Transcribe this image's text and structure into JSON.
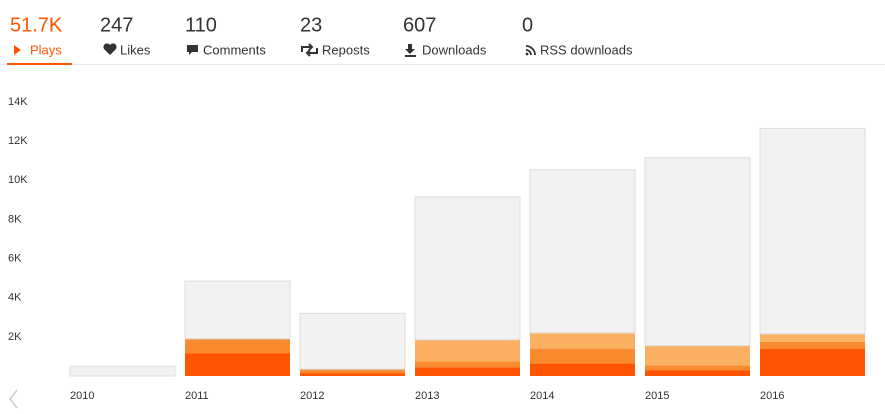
{
  "tabs": [
    {
      "value": "51.7K",
      "label": "Plays"
    },
    {
      "value": "247",
      "label": "Likes"
    },
    {
      "value": "110",
      "label": "Comments"
    },
    {
      "value": "23",
      "label": "Reposts"
    },
    {
      "value": "607",
      "label": "Downloads"
    },
    {
      "value": "0",
      "label": "RSS downloads"
    }
  ],
  "chart_data": {
    "type": "stacked-bar",
    "categories": [
      "2010",
      "2011",
      "2012",
      "2013",
      "2014",
      "2015",
      "2016"
    ],
    "series": [
      {
        "color": "#ff5500",
        "values": [
          0,
          1150,
          150,
          450,
          650,
          300,
          1400
        ]
      },
      {
        "color": "#f98b2e",
        "values": [
          0,
          750,
          200,
          300,
          750,
          250,
          350
        ]
      },
      {
        "color": "#fbb062",
        "values": [
          0,
          0,
          0,
          1100,
          800,
          1000,
          400
        ]
      },
      {
        "color": "#f2f2f2",
        "values": [
          500,
          2950,
          2850,
          7300,
          8340,
          9600,
          10500
        ]
      }
    ],
    "ylim": [
      0,
      14000
    ],
    "yticks": [
      {
        "value": 2000,
        "label": "2K"
      },
      {
        "value": 4000,
        "label": "4K"
      },
      {
        "value": 6000,
        "label": "6K"
      },
      {
        "value": 8000,
        "label": "8K"
      },
      {
        "value": 10000,
        "label": "10K"
      },
      {
        "value": 12000,
        "label": "12K"
      },
      {
        "value": 14000,
        "label": "14K"
      }
    ],
    "grid": false
  }
}
